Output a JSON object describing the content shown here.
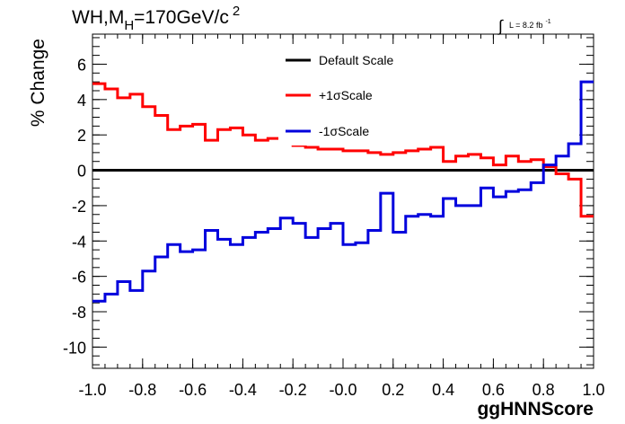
{
  "chart_data": {
    "type": "line",
    "title": "WH,M",
    "title_sub": "H",
    "title_rest": "=170GeV/c",
    "title_sup": "2",
    "lumi_symbol": "∫",
    "lumi_text": "L = 8.2 fb",
    "lumi_sup": "-1",
    "xlabel": "ggHNNScore",
    "ylabel": "% Change",
    "xlim": [
      -1.0,
      1.0
    ],
    "ylim": [
      -11.2,
      7.7
    ],
    "x_ticks": [
      {
        "v": -1.0,
        "label": "-1.0"
      },
      {
        "v": -0.8,
        "label": "-0.8"
      },
      {
        "v": -0.6,
        "label": "-0.6"
      },
      {
        "v": -0.4,
        "label": "-0.4"
      },
      {
        "v": -0.2,
        "label": "-0.2"
      },
      {
        "v": 0.0,
        "label": "-0.0"
      },
      {
        "v": 0.2,
        "label": "0.2"
      },
      {
        "v": 0.4,
        "label": "0.4"
      },
      {
        "v": 0.6,
        "label": "0.6"
      },
      {
        "v": 0.8,
        "label": "0.8"
      },
      {
        "v": 1.0,
        "label": "1.0"
      }
    ],
    "y_ticks": [
      {
        "v": 6,
        "label": "6"
      },
      {
        "v": 4,
        "label": "4"
      },
      {
        "v": 2,
        "label": "2"
      },
      {
        "v": 0,
        "label": "0"
      },
      {
        "v": -2,
        "label": "-2"
      },
      {
        "v": -4,
        "label": "-4"
      },
      {
        "v": -6,
        "label": "-6"
      },
      {
        "v": -8,
        "label": "-8"
      },
      {
        "v": -10,
        "label": "-10"
      }
    ],
    "legend_position": "top-center",
    "bin_edges": [
      -1.0,
      -0.95,
      -0.9,
      -0.85,
      -0.8,
      -0.75,
      -0.7,
      -0.65,
      -0.6,
      -0.55,
      -0.5,
      -0.45,
      -0.4,
      -0.35,
      -0.3,
      -0.25,
      -0.2,
      -0.15,
      -0.1,
      -0.05,
      0.0,
      0.05,
      0.1,
      0.15,
      0.2,
      0.25,
      0.3,
      0.35,
      0.4,
      0.45,
      0.5,
      0.55,
      0.6,
      0.65,
      0.7,
      0.75,
      0.8,
      0.85,
      0.9,
      0.95,
      1.0
    ],
    "series": [
      {
        "name": "Default Scale",
        "color": "#000000",
        "values": [
          0,
          0,
          0,
          0,
          0,
          0,
          0,
          0,
          0,
          0,
          0,
          0,
          0,
          0,
          0,
          0,
          0,
          0,
          0,
          0,
          0,
          0,
          0,
          0,
          0,
          0,
          0,
          0,
          0,
          0,
          0,
          0,
          0,
          0,
          0,
          0,
          0,
          0,
          0,
          0
        ]
      },
      {
        "name": "+1σScale",
        "color": "#ff0000",
        "values": [
          4.9,
          4.6,
          4.1,
          4.3,
          3.6,
          3.1,
          2.3,
          2.5,
          2.6,
          1.7,
          2.3,
          2.4,
          2.0,
          1.7,
          1.8,
          1.5,
          1.4,
          1.3,
          1.2,
          1.2,
          1.1,
          1.1,
          1.0,
          0.9,
          1.0,
          1.1,
          1.2,
          1.3,
          0.5,
          0.8,
          0.9,
          0.7,
          0.3,
          0.8,
          0.5,
          0.6,
          0.2,
          -0.2,
          -0.5,
          -2.6
        ]
      },
      {
        "name": "-1σScale",
        "color": "#0000dd",
        "values": [
          -7.4,
          -7.0,
          -6.3,
          -6.8,
          -5.7,
          -4.9,
          -4.2,
          -4.6,
          -4.5,
          -3.4,
          -3.9,
          -4.2,
          -3.8,
          -3.5,
          -3.3,
          -2.7,
          -3.0,
          -3.8,
          -3.3,
          -3.0,
          -4.2,
          -4.1,
          -3.4,
          -1.3,
          -3.5,
          -2.6,
          -2.5,
          -2.6,
          -1.6,
          -2.0,
          -2.0,
          -1.0,
          -1.5,
          -1.2,
          -1.1,
          -0.7,
          0.3,
          0.8,
          1.5,
          5.0
        ]
      }
    ]
  }
}
